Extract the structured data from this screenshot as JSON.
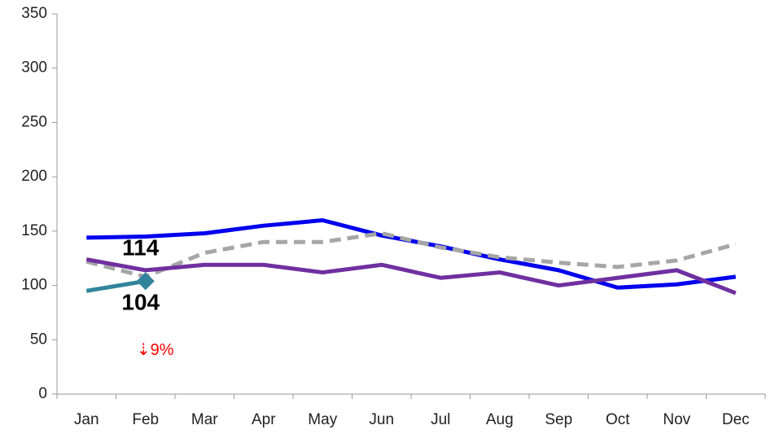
{
  "chart_data": {
    "type": "line",
    "categories": [
      "Jan",
      "Feb",
      "Mar",
      "Apr",
      "May",
      "Jun",
      "Jul",
      "Aug",
      "Sep",
      "Oct",
      "Nov",
      "Dec"
    ],
    "series": [
      {
        "color": "#0000ee",
        "dash": false,
        "values": [
          144,
          145,
          148,
          155,
          160,
          146,
          136,
          124,
          114,
          98,
          101,
          108
        ]
      },
      {
        "color": "#a6a6a6",
        "dash": true,
        "values": [
          122,
          108,
          130,
          140,
          140,
          148,
          135,
          126,
          121,
          117,
          123,
          138
        ]
      },
      {
        "color": "#7030a0",
        "dash": false,
        "values": [
          124,
          114,
          119,
          119,
          112,
          119,
          107,
          112,
          100,
          107,
          114,
          93
        ],
        "label_index": 1,
        "label_position": "above"
      },
      {
        "color": "#31849b",
        "dash": false,
        "marker": "diamond",
        "values": [
          95,
          104,
          null,
          null,
          null,
          null,
          null,
          null,
          null,
          null,
          null,
          null
        ],
        "label_index": 1,
        "label_position": "below"
      }
    ],
    "annotation": {
      "text": "⇣9%",
      "color": "#ff0000",
      "category_index": 1,
      "y": 40
    },
    "ylim": [
      0,
      350
    ],
    "yticks": [
      0,
      50,
      100,
      150,
      200,
      250,
      300,
      350
    ],
    "grid": false
  }
}
